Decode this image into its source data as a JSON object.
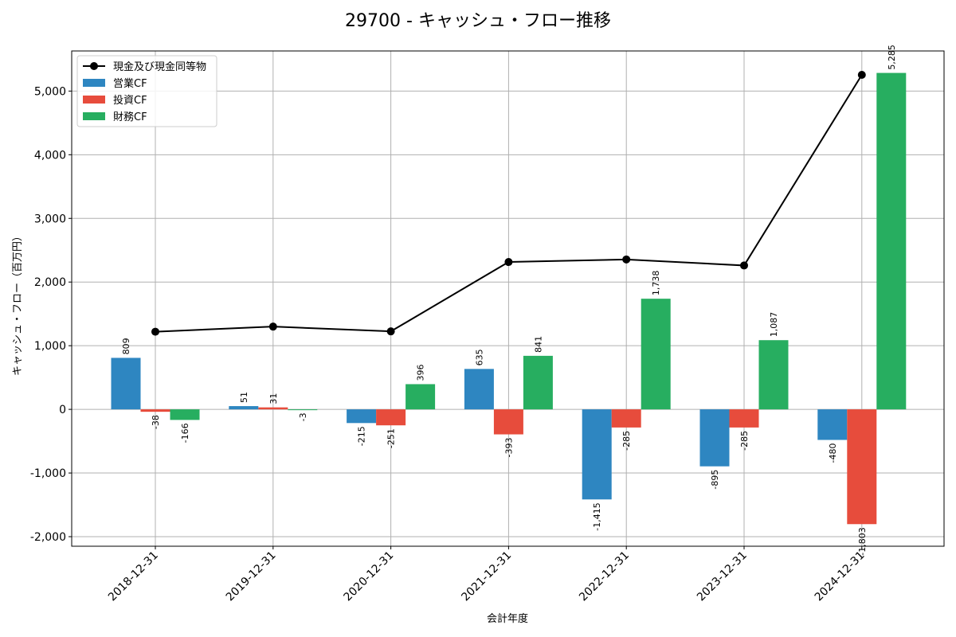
{
  "chart_data": {
    "type": "bar",
    "title": "29700 - キャッシュ・フロー推移",
    "xlabel": "会計年度",
    "ylabel": "キャッシュ・フロー（百万円）",
    "categories": [
      "2018-12-31",
      "2019-12-31",
      "2020-12-31",
      "2021-12-31",
      "2022-12-31",
      "2023-12-31",
      "2024-12-31"
    ],
    "ylim": [
      -2150,
      5630
    ],
    "yticks": [
      -2000,
      -1000,
      0,
      1000,
      2000,
      3000,
      4000,
      5000
    ],
    "ytick_labels": [
      "-2,000",
      "-1,000",
      "0",
      "1,000",
      "2,000",
      "3,000",
      "4,000",
      "5,000"
    ],
    "grid": true,
    "legend_position": "top-left",
    "series": [
      {
        "name": "営業CF",
        "kind": "bar",
        "color": "#2e86c1",
        "values": [
          809,
          51,
          -215,
          635,
          -1415,
          -895,
          -480
        ],
        "labels": [
          "809",
          "51",
          "-215",
          "635",
          "-1,415",
          "-895",
          "-480"
        ]
      },
      {
        "name": "投資CF",
        "kind": "bar",
        "color": "#e74c3c",
        "values": [
          -38,
          31,
          -251,
          -393,
          -285,
          -285,
          -1803
        ],
        "labels": [
          "-38",
          "31",
          "-251",
          "-393",
          "-285",
          "-285",
          "-1,803"
        ]
      },
      {
        "name": "財務CF",
        "kind": "bar",
        "color": "#27ae60",
        "values": [
          -166,
          -3,
          396,
          841,
          1738,
          1087,
          5285
        ],
        "labels": [
          "-166",
          "-3",
          "396",
          "841",
          "1,738",
          "1,087",
          "5,285"
        ]
      },
      {
        "name": "現金及び現金同等物",
        "kind": "line",
        "color": "#000000",
        "values": [
          1220,
          1300,
          1225,
          2315,
          2355,
          2260,
          5255
        ]
      }
    ]
  }
}
